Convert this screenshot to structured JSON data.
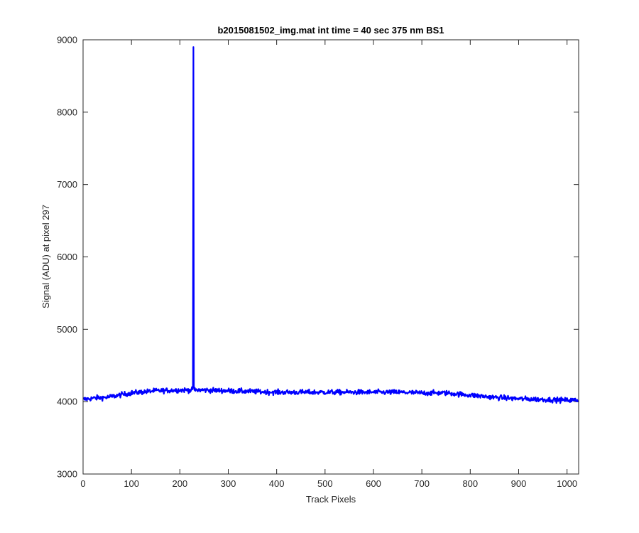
{
  "chart_data": {
    "type": "line",
    "title": "b2015081502_img.mat int time = 40 sec  375 nm BS1",
    "xlabel": "Track Pixels",
    "ylabel": "Signal (ADU) at pixel 297",
    "xlim": [
      0,
      1024
    ],
    "ylim": [
      3000,
      9000
    ],
    "xticks": [
      0,
      100,
      200,
      300,
      400,
      500,
      600,
      700,
      800,
      900,
      1000
    ],
    "yticks": [
      3000,
      4000,
      5000,
      6000,
      7000,
      8000,
      9000
    ],
    "grid": false,
    "legend": "none",
    "series": [
      {
        "color": "#0000ff",
        "baseline": {
          "x": [
            0,
            25,
            50,
            75,
            100,
            150,
            200,
            250,
            300,
            350,
            400,
            450,
            500,
            550,
            600,
            650,
            700,
            750,
            800,
            850,
            900,
            950,
            1000,
            1024
          ],
          "y": [
            4030,
            4050,
            4060,
            4090,
            4120,
            4150,
            4160,
            4160,
            4150,
            4140,
            4130,
            4130,
            4130,
            4130,
            4130,
            4130,
            4120,
            4120,
            4090,
            4060,
            4040,
            4030,
            4020,
            4020
          ]
        },
        "noise_amplitude": 45,
        "spike": {
          "x": 228,
          "y": 8900
        }
      }
    ]
  }
}
